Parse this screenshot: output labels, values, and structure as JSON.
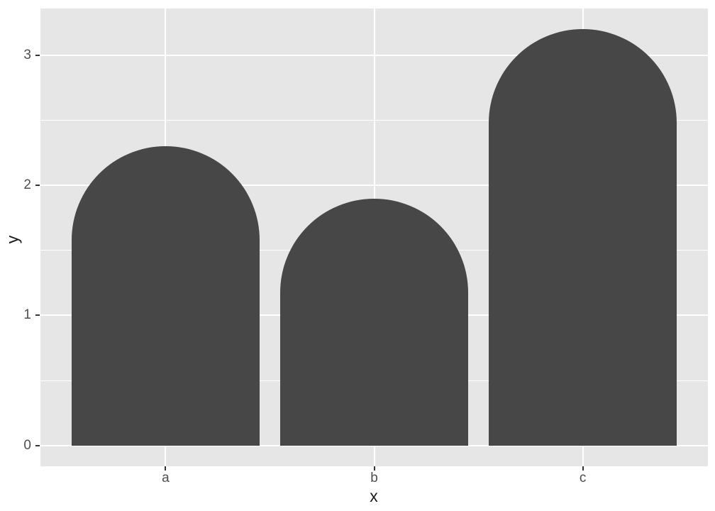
{
  "chart_data": {
    "type": "bar",
    "title": "",
    "categories": [
      "a",
      "b",
      "c"
    ],
    "values": [
      2.3,
      1.9,
      3.2
    ],
    "xlabel": "x",
    "ylabel": "y",
    "ylim": [
      -0.16,
      3.36
    ],
    "y_major_ticks": [
      0,
      1,
      2,
      3
    ],
    "y_minor_gridlines": [
      0.5,
      1.5,
      2.5
    ],
    "bar_width_fraction": 0.9,
    "bar_style": "rounded-top-semicircle",
    "legend_position": "none",
    "grid": "on",
    "colors": {
      "bar_fill": "#474747",
      "panel_background": "#E6E6E6",
      "gridline": "#FFFFFF",
      "tick_mark": "#333333",
      "tick_label": "#4D4D4D",
      "axis_title": "#1A1A1A",
      "figure_background": "#FFFFFF"
    }
  }
}
